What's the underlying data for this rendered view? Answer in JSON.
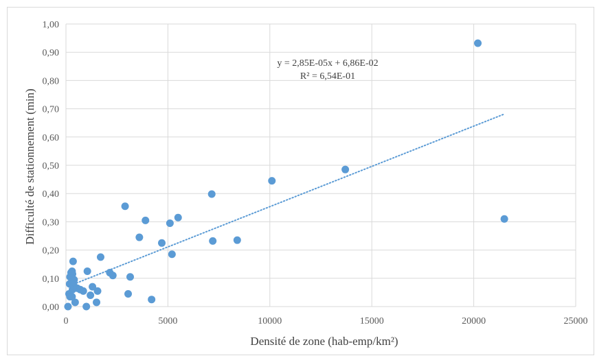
{
  "chart_data": {
    "type": "scatter",
    "title": "",
    "xlabel": "Densité de zone (hab-emp/km²)",
    "ylabel": "Difficulté de stationnement (min)",
    "xlim": [
      0,
      25000
    ],
    "ylim": [
      0,
      1.0
    ],
    "x_ticks": [
      "0",
      "5000",
      "10000",
      "15000",
      "20000",
      "25000"
    ],
    "y_ticks": [
      "0,00",
      "0,10",
      "0,20",
      "0,30",
      "0,40",
      "0,50",
      "0,60",
      "0,70",
      "0,80",
      "0,90",
      "1,00"
    ],
    "grid": true,
    "marker_color": "#5b9bd5",
    "trendline": {
      "type": "linear",
      "slope": 2.85e-05,
      "intercept": 0.0686,
      "x_range": [
        100,
        21500
      ],
      "color": "#5b9bd5",
      "style": "dotted",
      "equation": "y = 2,85E-05x  + 6,86E-02",
      "r_squared": "R² = 6,54E-01"
    },
    "points": [
      [
        100,
        0.0
      ],
      [
        150,
        0.045
      ],
      [
        200,
        0.035
      ],
      [
        250,
        0.12
      ],
      [
        180,
        0.08
      ],
      [
        200,
        0.105
      ],
      [
        300,
        0.125
      ],
      [
        320,
        0.115
      ],
      [
        350,
        0.16
      ],
      [
        300,
        0.1
      ],
      [
        350,
        0.09
      ],
      [
        400,
        0.095
      ],
      [
        280,
        0.08
      ],
      [
        380,
        0.075
      ],
      [
        320,
        0.06
      ],
      [
        450,
        0.015
      ],
      [
        300,
        0.035
      ],
      [
        550,
        0.065
      ],
      [
        700,
        0.06
      ],
      [
        850,
        0.055
      ],
      [
        1000,
        0.0
      ],
      [
        1050,
        0.125
      ],
      [
        1200,
        0.04
      ],
      [
        1300,
        0.07
      ],
      [
        1500,
        0.015
      ],
      [
        1550,
        0.055
      ],
      [
        1700,
        0.175
      ],
      [
        2150,
        0.12
      ],
      [
        2300,
        0.11
      ],
      [
        2900,
        0.355
      ],
      [
        3050,
        0.045
      ],
      [
        3150,
        0.105
      ],
      [
        3600,
        0.245
      ],
      [
        3900,
        0.305
      ],
      [
        4200,
        0.025
      ],
      [
        4700,
        0.225
      ],
      [
        5100,
        0.295
      ],
      [
        5200,
        0.185
      ],
      [
        5500,
        0.315
      ],
      [
        7150,
        0.398
      ],
      [
        7200,
        0.232
      ],
      [
        8400,
        0.235
      ],
      [
        10100,
        0.445
      ],
      [
        13700,
        0.485
      ],
      [
        20200,
        0.932
      ],
      [
        21500,
        0.31
      ]
    ]
  }
}
